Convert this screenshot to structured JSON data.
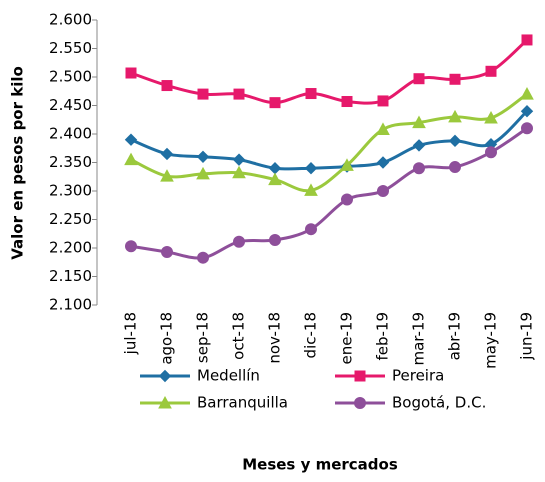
{
  "chart_data": {
    "type": "line",
    "y_label": "Valor en pesos por kilo",
    "x_label": "Meses  y mercados",
    "categories": [
      "jul-18",
      "ago-18",
      "sep-18",
      "oct-18",
      "nov-18",
      "dic-18",
      "ene-19",
      "feb-19",
      "mar-19",
      "abr-19",
      "may-19",
      "jun-19"
    ],
    "series": [
      {
        "name": "Medellín",
        "color": "#1f6fa3",
        "marker": "diamond",
        "values": [
          2390,
          2365,
          2360,
          2355,
          2340,
          2340,
          2343,
          2350,
          2380,
          2388,
          2382,
          2440
        ]
      },
      {
        "name": "Pereira",
        "color": "#e6196b",
        "marker": "square",
        "values": [
          2507,
          2485,
          2470,
          2470,
          2455,
          2471,
          2457,
          2458,
          2497,
          2496,
          2510,
          2565
        ]
      },
      {
        "name": "Barranquilla",
        "color": "#9bc93d",
        "marker": "triangle",
        "values": [
          2355,
          2326,
          2330,
          2332,
          2320,
          2301,
          2345,
          2408,
          2420,
          2430,
          2428,
          2470
        ]
      },
      {
        "name": "Bogotá, D.C.",
        "color": "#8e4f9a",
        "marker": "circle",
        "values": [
          2203,
          2193,
          2183,
          2211,
          2214,
          2233,
          2285,
          2300,
          2340,
          2342,
          2368,
          2410
        ]
      }
    ],
    "ylim": [
      2100,
      2600
    ],
    "yticks": [
      {
        "value": 2100,
        "label": "2.100"
      },
      {
        "value": 2150,
        "label": "2.150"
      },
      {
        "value": 2200,
        "label": "2.200"
      },
      {
        "value": 2250,
        "label": "2.250"
      },
      {
        "value": 2300,
        "label": "2.300"
      },
      {
        "value": 2350,
        "label": "2.350"
      },
      {
        "value": 2400,
        "label": "2.400"
      },
      {
        "value": 2450,
        "label": "2.450"
      },
      {
        "value": 2500,
        "label": "2.500"
      },
      {
        "value": 2550,
        "label": "2.550"
      },
      {
        "value": 2600,
        "label": "2.600"
      }
    ],
    "legend": "bottom"
  }
}
